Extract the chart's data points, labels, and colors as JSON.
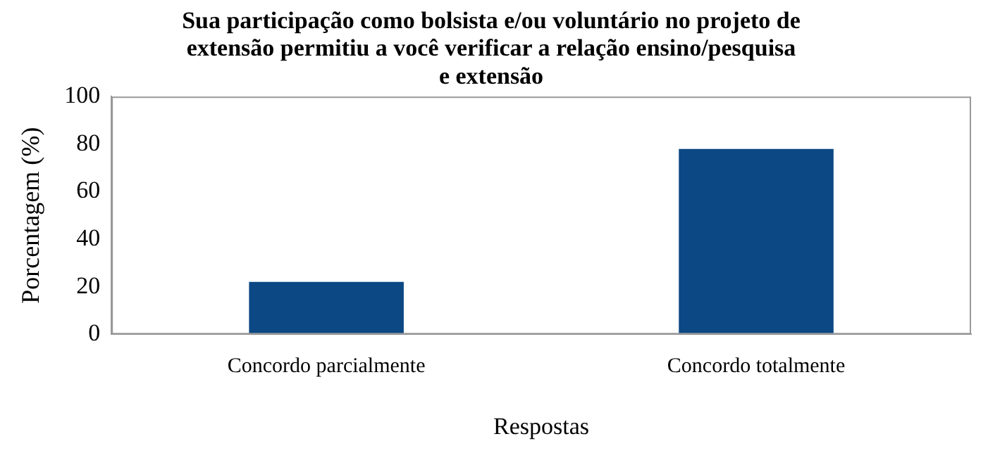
{
  "chart_data": {
    "type": "bar",
    "title": [
      "Sua participação como bolsista e/ou voluntário no projeto de",
      "extensão permitiu a você verificar a relação ensino/pesquisa",
      "e extensão"
    ],
    "xlabel": "Respostas",
    "ylabel": "Porcentagem (%)",
    "categories": [
      "Concordo parcialmente",
      "Concordo totalmente"
    ],
    "values": [
      22,
      78
    ],
    "color": "#0b4884",
    "ylim": [
      0,
      100
    ],
    "yticks": [
      0,
      20,
      40,
      60,
      80,
      100
    ],
    "grid": false,
    "legend": false
  }
}
